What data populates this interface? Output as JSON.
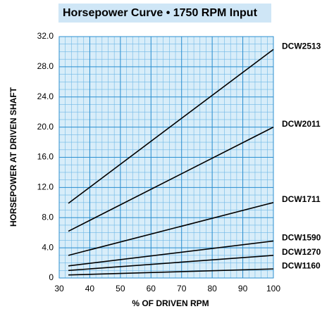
{
  "chart_data": {
    "type": "line",
    "title": "Horsepower Curve • 1750 RPM Input",
    "x_label": "% OF DRIVEN RPM",
    "y_label": "HORSEPOWER AT DRIVEN SHAFT",
    "x": [
      33,
      100
    ],
    "series": [
      {
        "name": "DCW2513",
        "color": "#000000",
        "values": [
          9.9,
          30.3
        ]
      },
      {
        "name": "DCW2011",
        "color": "#000000",
        "values": [
          6.2,
          20.0
        ]
      },
      {
        "name": "DCW1711",
        "color": "#000000",
        "values": [
          3.0,
          10.0
        ]
      },
      {
        "name": "DCW1590",
        "color": "#000000",
        "values": [
          1.6,
          4.9
        ]
      },
      {
        "name": "DCW1270",
        "color": "#000000",
        "values": [
          1.0,
          3.0
        ]
      },
      {
        "name": "DCW1160",
        "color": "#000000",
        "values": [
          0.4,
          1.2
        ]
      }
    ],
    "xlim": [
      30,
      100
    ],
    "xticks": [
      30,
      40,
      50,
      60,
      70,
      80,
      90,
      100
    ],
    "ylim": [
      0,
      32
    ],
    "yticks": [
      0,
      {
        "value": 4,
        "label": "4.0"
      },
      {
        "value": 8,
        "label": "8.0"
      },
      {
        "value": 12,
        "label": "12.0"
      },
      {
        "value": 16,
        "label": "16.0"
      },
      {
        "value": 20,
        "label": "20.0"
      },
      {
        "value": 24,
        "label": "24.0"
      },
      {
        "value": 28,
        "label": "28.0"
      },
      {
        "value": 32,
        "label": "32.0"
      }
    ],
    "grid": true
  }
}
